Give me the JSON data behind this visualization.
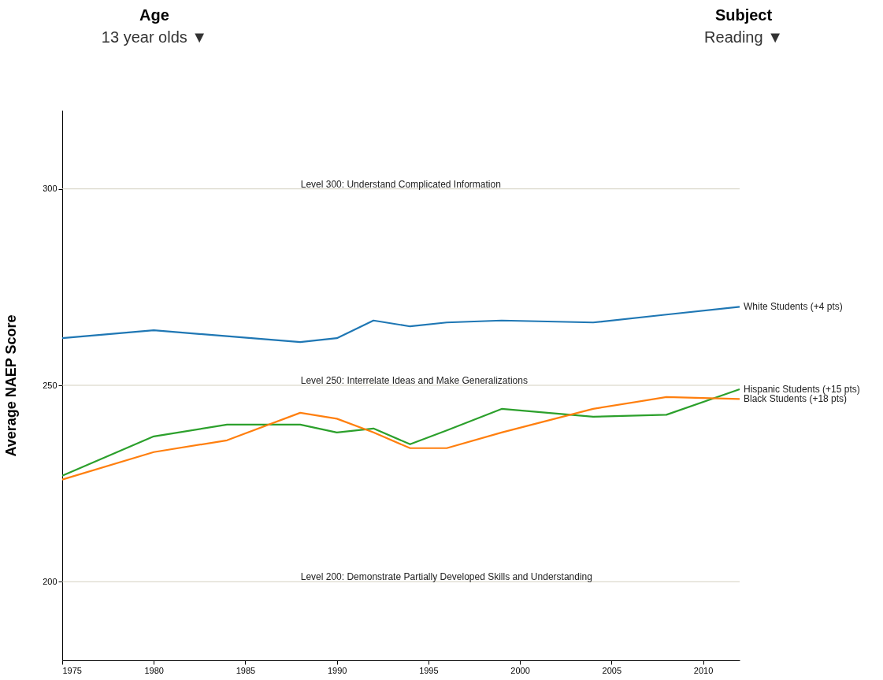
{
  "chart_data": {
    "type": "line",
    "ylabel": "Average NAEP Score",
    "x": [
      1975,
      1980,
      1984,
      1988,
      1990,
      1992,
      1994,
      1996,
      1999,
      2004,
      2008,
      2012
    ],
    "series": [
      {
        "name": "White Students (+4 pts)",
        "color": "#1f77b4",
        "values": [
          262,
          264,
          262.5,
          261,
          262,
          266.5,
          265,
          266,
          266.5,
          266,
          268,
          270
        ]
      },
      {
        "name": "Hispanic Students (+15 pts)",
        "color": "#2ca02c",
        "values": [
          227,
          237,
          240,
          240,
          238,
          239,
          235,
          238.5,
          244,
          242,
          242.5,
          249
        ]
      },
      {
        "name": "Black Students (+18 pts)",
        "color": "#ff7f0e",
        "values": [
          226,
          233,
          236,
          243,
          241.5,
          238,
          234,
          234,
          238,
          244,
          247,
          246.5
        ]
      }
    ],
    "xlim": [
      1975,
      2012
    ],
    "xticks": [
      1975,
      1980,
      1985,
      1990,
      1995,
      2000,
      2005,
      2010
    ],
    "ylim": [
      180,
      320
    ],
    "yticks": [
      200,
      250,
      300
    ],
    "ref_lines": [
      {
        "axis": "y",
        "value": 300,
        "label": "Level 300: Understand Complicated Information",
        "color": "#d4d0c0"
      },
      {
        "axis": "y",
        "value": 250,
        "label": "Level 250: Interrelate Ideas and Make Generalizations",
        "color": "#d4d0c0"
      },
      {
        "axis": "y",
        "value": 200,
        "label": "Level 200: Demonstrate Partially Developed Skills and Understanding",
        "color": "#d4d0c0"
      }
    ],
    "annotations": [
      "Age",
      "13 year olds ▼",
      "Subject",
      "Reading ▼"
    ],
    "grid": false,
    "legend": false,
    "marker": "none",
    "line_style": "solid"
  }
}
